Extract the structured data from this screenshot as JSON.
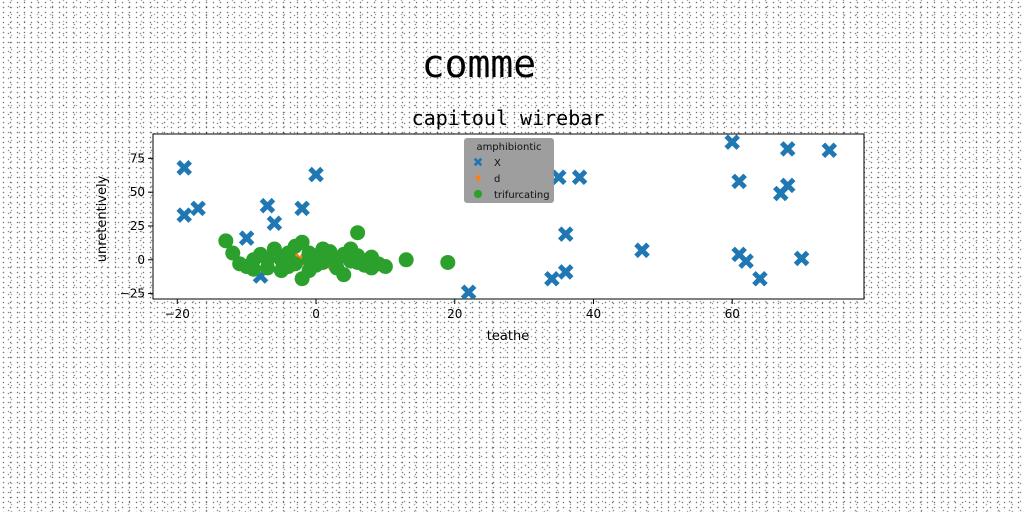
{
  "chart_data": {
    "type": "scatter",
    "suptitle": "comme",
    "title": "capitoul wirebar",
    "xlabel": "teathe",
    "ylabel": "unretentively",
    "xlim": [
      -23.5,
      79
    ],
    "ylim": [
      -29,
      93
    ],
    "xticks": [
      -20,
      0,
      20,
      40,
      60
    ],
    "yticks": [
      -25,
      0,
      25,
      50,
      75
    ],
    "legend": {
      "title": "amphibiontic",
      "placement": "top-center",
      "background": "#999999"
    },
    "series": [
      {
        "name": "X",
        "marker": "x",
        "color": "#1f77b4",
        "points": [
          [
            -19,
            68
          ],
          [
            -19,
            33
          ],
          [
            -17,
            38
          ],
          [
            -10,
            16
          ],
          [
            -7,
            40
          ],
          [
            -6,
            27
          ],
          [
            -2,
            38
          ],
          [
            0,
            63
          ],
          [
            -8,
            -12
          ],
          [
            22,
            -24
          ],
          [
            34,
            -14
          ],
          [
            36,
            -9
          ],
          [
            35,
            61
          ],
          [
            38,
            61
          ],
          [
            36,
            19
          ],
          [
            47,
            7
          ],
          [
            60,
            87
          ],
          [
            61,
            58
          ],
          [
            61,
            4
          ],
          [
            62,
            -1
          ],
          [
            64,
            -14
          ],
          [
            67,
            49
          ],
          [
            68,
            55
          ],
          [
            68,
            82
          ],
          [
            70,
            1
          ],
          [
            74,
            81
          ]
        ]
      },
      {
        "name": "d",
        "marker": "d",
        "color": "#ff7f0e",
        "points": [
          [
            -3,
            2
          ],
          [
            -2,
            0
          ],
          [
            -1,
            3
          ],
          [
            0,
            1
          ],
          [
            1,
            -1
          ],
          [
            2,
            2
          ],
          [
            3,
            0
          ],
          [
            4,
            3
          ],
          [
            -1,
            -2
          ],
          [
            2,
            -3
          ],
          [
            3,
            -1
          ]
        ]
      },
      {
        "name": "trifurcating",
        "marker": "o",
        "color": "#2ca02c",
        "points": [
          [
            -13,
            14
          ],
          [
            -12,
            5
          ],
          [
            -11,
            -3
          ],
          [
            -10,
            -5
          ],
          [
            -9,
            0
          ],
          [
            -8,
            4
          ],
          [
            -7,
            -6
          ],
          [
            -6,
            8
          ],
          [
            -5,
            0
          ],
          [
            -5,
            -8
          ],
          [
            -4,
            5
          ],
          [
            -3,
            10
          ],
          [
            -3,
            -3
          ],
          [
            -2,
            13
          ],
          [
            -2,
            -14
          ],
          [
            -1,
            0
          ],
          [
            -1,
            5
          ],
          [
            -1,
            -8
          ],
          [
            0,
            -4
          ],
          [
            0,
            3
          ],
          [
            1,
            -2
          ],
          [
            2,
            6
          ],
          [
            3,
            0
          ],
          [
            3,
            -6
          ],
          [
            4,
            4
          ],
          [
            4,
            -11
          ],
          [
            5,
            8
          ],
          [
            5,
            -1
          ],
          [
            6,
            20
          ],
          [
            6,
            3
          ],
          [
            7,
            -4
          ],
          [
            8,
            -6
          ],
          [
            8,
            2
          ],
          [
            9,
            -3
          ],
          [
            10,
            -5
          ],
          [
            13,
            0
          ],
          [
            19,
            -2
          ],
          [
            -4,
            -5
          ],
          [
            -7,
            0
          ],
          [
            -9,
            -7
          ],
          [
            6,
            -2
          ],
          [
            1,
            8
          ]
        ]
      }
    ]
  }
}
